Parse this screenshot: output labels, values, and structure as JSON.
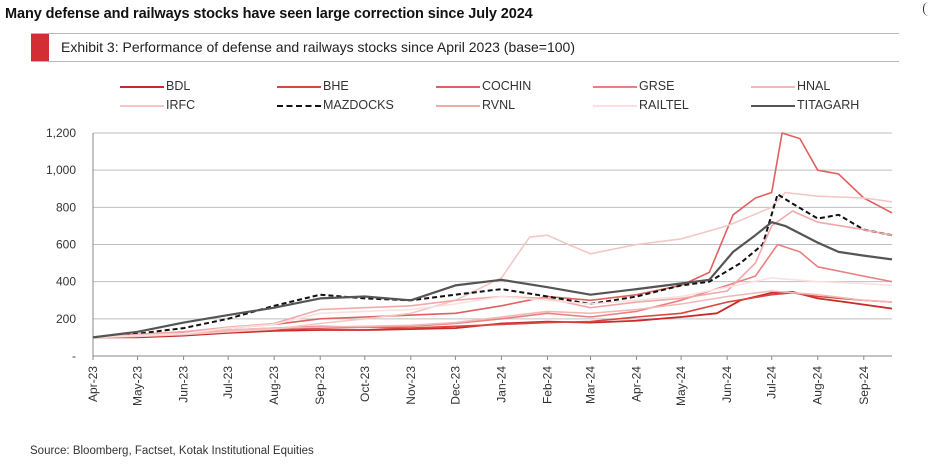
{
  "headline": "Many defense and railways stocks have seen large correction since July 2024",
  "exhibit_title": "Exhibit 3: Performance of defense and railways stocks since April 2023 (base=100)",
  "source": "Source: Bloomberg, Factset, Kotak Institutional Equities",
  "chart_data": {
    "type": "line",
    "title": "Exhibit 3: Performance of defense and railways stocks since April 2023 (base=100)",
    "xlabel": "",
    "ylabel": "",
    "grid": true,
    "legend_position": "top",
    "ylim": [
      0,
      1200
    ],
    "y_ticks": [
      0,
      200,
      400,
      600,
      800,
      1000,
      1200
    ],
    "y_tick_labels": [
      "-",
      "200",
      "400",
      "600",
      "800",
      "1,000",
      "1,200"
    ],
    "x_range": [
      "2023-04-01",
      "2024-09-20"
    ],
    "x_ticks": [
      "2023-04-01",
      "2023-05-01",
      "2023-06-01",
      "2023-07-01",
      "2023-08-01",
      "2023-09-01",
      "2023-10-01",
      "2023-11-01",
      "2023-12-01",
      "2024-01-01",
      "2024-02-01",
      "2024-03-01",
      "2024-04-01",
      "2024-05-01",
      "2024-06-01",
      "2024-07-01",
      "2024-08-01",
      "2024-09-01"
    ],
    "x_tick_labels": [
      "Apr-23",
      "May-23",
      "Jun-23",
      "Jul-23",
      "Aug-23",
      "Sep-23",
      "Oct-23",
      "Nov-23",
      "Dec-23",
      "Jan-24",
      "Feb-24",
      "Mar-24",
      "Apr-24",
      "May-24",
      "Jun-24",
      "Jul-24",
      "Aug-24",
      "Sep-24"
    ],
    "series": [
      {
        "name": "BDL",
        "color": "#c92a2a",
        "dash": false,
        "width": 1.8,
        "x": [
          "2023-04-01",
          "2023-05-01",
          "2023-06-01",
          "2023-07-01",
          "2023-08-01",
          "2023-09-01",
          "2023-10-01",
          "2023-11-01",
          "2023-12-01",
          "2024-01-01",
          "2024-02-01",
          "2024-03-01",
          "2024-04-01",
          "2024-05-01",
          "2024-05-25",
          "2024-06-10",
          "2024-07-01",
          "2024-07-15",
          "2024-08-01",
          "2024-08-20",
          "2024-09-20"
        ],
        "y": [
          100,
          100,
          110,
          125,
          135,
          140,
          140,
          145,
          150,
          175,
          185,
          180,
          190,
          210,
          230,
          300,
          340,
          345,
          310,
          290,
          255
        ]
      },
      {
        "name": "BHE",
        "color": "#d8463f",
        "dash": false,
        "width": 1.6,
        "x": [
          "2023-04-01",
          "2023-05-01",
          "2023-06-01",
          "2023-07-01",
          "2023-08-01",
          "2023-09-01",
          "2023-10-01",
          "2023-11-01",
          "2023-12-01",
          "2024-01-01",
          "2024-02-01",
          "2024-03-01",
          "2024-04-01",
          "2024-05-01",
          "2024-06-01",
          "2024-07-01",
          "2024-07-15",
          "2024-08-01",
          "2024-09-01",
          "2024-09-20"
        ],
        "y": [
          100,
          110,
          120,
          130,
          140,
          150,
          155,
          150,
          160,
          170,
          180,
          185,
          210,
          230,
          290,
          330,
          340,
          320,
          300,
          290
        ]
      },
      {
        "name": "COCHIN",
        "color": "#e06060",
        "dash": false,
        "width": 1.6,
        "x": [
          "2023-04-01",
          "2023-05-01",
          "2023-06-01",
          "2023-07-01",
          "2023-08-01",
          "2023-09-01",
          "2023-10-01",
          "2023-11-01",
          "2023-12-01",
          "2024-01-01",
          "2024-02-01",
          "2024-03-01",
          "2024-04-01",
          "2024-05-01",
          "2024-05-20",
          "2024-06-05",
          "2024-06-20",
          "2024-07-01",
          "2024-07-08",
          "2024-07-20",
          "2024-08-01",
          "2024-08-15",
          "2024-09-01",
          "2024-09-20"
        ],
        "y": [
          100,
          115,
          130,
          150,
          170,
          200,
          210,
          220,
          230,
          270,
          320,
          300,
          330,
          380,
          450,
          760,
          850,
          880,
          1200,
          1170,
          1000,
          980,
          850,
          770
        ]
      },
      {
        "name": "GRSE",
        "color": "#e88080",
        "dash": false,
        "width": 1.6,
        "x": [
          "2023-04-01",
          "2023-05-01",
          "2023-06-01",
          "2023-07-01",
          "2023-08-01",
          "2023-09-01",
          "2023-10-01",
          "2023-11-01",
          "2023-12-01",
          "2024-01-01",
          "2024-02-01",
          "2024-03-01",
          "2024-04-01",
          "2024-05-01",
          "2024-06-01",
          "2024-06-20",
          "2024-07-05",
          "2024-07-20",
          "2024-08-01",
          "2024-09-01",
          "2024-09-20"
        ],
        "y": [
          100,
          115,
          125,
          140,
          150,
          160,
          155,
          160,
          175,
          200,
          230,
          210,
          240,
          300,
          380,
          430,
          600,
          560,
          480,
          430,
          400
        ]
      },
      {
        "name": "HNAL",
        "color": "#f2b8b8",
        "dash": false,
        "width": 1.6,
        "x": [
          "2023-04-01",
          "2023-05-01",
          "2023-06-01",
          "2023-07-01",
          "2023-08-01",
          "2023-09-01",
          "2023-10-01",
          "2023-11-01",
          "2023-12-01",
          "2024-01-01",
          "2024-02-01",
          "2024-03-01",
          "2024-04-01",
          "2024-05-01",
          "2024-06-01",
          "2024-07-01",
          "2024-08-01",
          "2024-09-01",
          "2024-09-20"
        ],
        "y": [
          100,
          110,
          120,
          140,
          150,
          155,
          160,
          165,
          180,
          210,
          240,
          230,
          250,
          280,
          320,
          350,
          330,
          300,
          290
        ]
      },
      {
        "name": "IRFC",
        "color": "#f5c6c6",
        "dash": false,
        "width": 1.6,
        "x": [
          "2023-04-01",
          "2023-05-01",
          "2023-06-01",
          "2023-07-01",
          "2023-08-01",
          "2023-09-01",
          "2023-10-01",
          "2023-11-01",
          "2023-12-01",
          "2024-01-01",
          "2024-01-20",
          "2024-02-01",
          "2024-02-15",
          "2024-03-01",
          "2024-04-01",
          "2024-05-01",
          "2024-06-01",
          "2024-07-01",
          "2024-07-10",
          "2024-08-01",
          "2024-09-01",
          "2024-09-20"
        ],
        "y": [
          100,
          105,
          115,
          130,
          145,
          175,
          200,
          230,
          300,
          420,
          640,
          650,
          600,
          550,
          600,
          630,
          700,
          800,
          880,
          860,
          850,
          830
        ]
      },
      {
        "name": "MAZDOCKS",
        "color": "#111111",
        "dash": true,
        "width": 2.0,
        "x": [
          "2023-04-01",
          "2023-05-01",
          "2023-06-01",
          "2023-07-01",
          "2023-08-01",
          "2023-09-01",
          "2023-10-01",
          "2023-11-01",
          "2023-12-01",
          "2024-01-01",
          "2024-02-01",
          "2024-03-01",
          "2024-04-01",
          "2024-05-01",
          "2024-05-20",
          "2024-06-10",
          "2024-06-25",
          "2024-07-05",
          "2024-07-15",
          "2024-08-01",
          "2024-08-15",
          "2024-09-01",
          "2024-09-20"
        ],
        "y": [
          100,
          120,
          150,
          200,
          270,
          330,
          310,
          300,
          330,
          360,
          320,
          280,
          320,
          380,
          400,
          500,
          600,
          870,
          820,
          740,
          760,
          680,
          650
        ]
      },
      {
        "name": "RVNL",
        "color": "#f0a8a8",
        "dash": false,
        "width": 1.6,
        "x": [
          "2023-04-01",
          "2023-05-01",
          "2023-06-01",
          "2023-07-01",
          "2023-08-01",
          "2023-09-01",
          "2023-10-01",
          "2023-11-01",
          "2023-12-01",
          "2024-01-01",
          "2024-02-01",
          "2024-03-01",
          "2024-04-01",
          "2024-05-01",
          "2024-06-01",
          "2024-06-20",
          "2024-07-01",
          "2024-07-15",
          "2024-08-01",
          "2024-09-01",
          "2024-09-20"
        ],
        "y": [
          100,
          115,
          130,
          155,
          175,
          250,
          260,
          270,
          300,
          320,
          310,
          260,
          290,
          310,
          350,
          500,
          700,
          780,
          720,
          680,
          650
        ]
      },
      {
        "name": "RAILTEL",
        "color": "#fbe0e0",
        "dash": false,
        "width": 1.6,
        "x": [
          "2023-04-01",
          "2023-05-01",
          "2023-06-01",
          "2023-07-01",
          "2023-08-01",
          "2023-09-01",
          "2023-10-01",
          "2023-11-01",
          "2023-12-01",
          "2024-01-01",
          "2024-02-01",
          "2024-03-01",
          "2024-04-01",
          "2024-05-01",
          "2024-06-01",
          "2024-07-01",
          "2024-08-01",
          "2024-09-01",
          "2024-09-20"
        ],
        "y": [
          100,
          110,
          120,
          150,
          170,
          230,
          240,
          250,
          280,
          320,
          300,
          280,
          300,
          320,
          370,
          420,
          400,
          390,
          380
        ]
      },
      {
        "name": "TITAGARH",
        "color": "#555555",
        "dash": false,
        "width": 2.2,
        "x": [
          "2023-04-01",
          "2023-05-01",
          "2023-06-01",
          "2023-07-01",
          "2023-08-01",
          "2023-09-01",
          "2023-10-01",
          "2023-11-01",
          "2023-12-01",
          "2024-01-01",
          "2024-02-01",
          "2024-03-01",
          "2024-04-01",
          "2024-05-01",
          "2024-05-20",
          "2024-06-05",
          "2024-06-20",
          "2024-07-01",
          "2024-07-10",
          "2024-08-01",
          "2024-08-15",
          "2024-09-01",
          "2024-09-20"
        ],
        "y": [
          100,
          130,
          180,
          220,
          260,
          310,
          320,
          300,
          380,
          410,
          370,
          330,
          360,
          390,
          410,
          560,
          650,
          720,
          700,
          610,
          560,
          540,
          520
        ]
      }
    ]
  }
}
